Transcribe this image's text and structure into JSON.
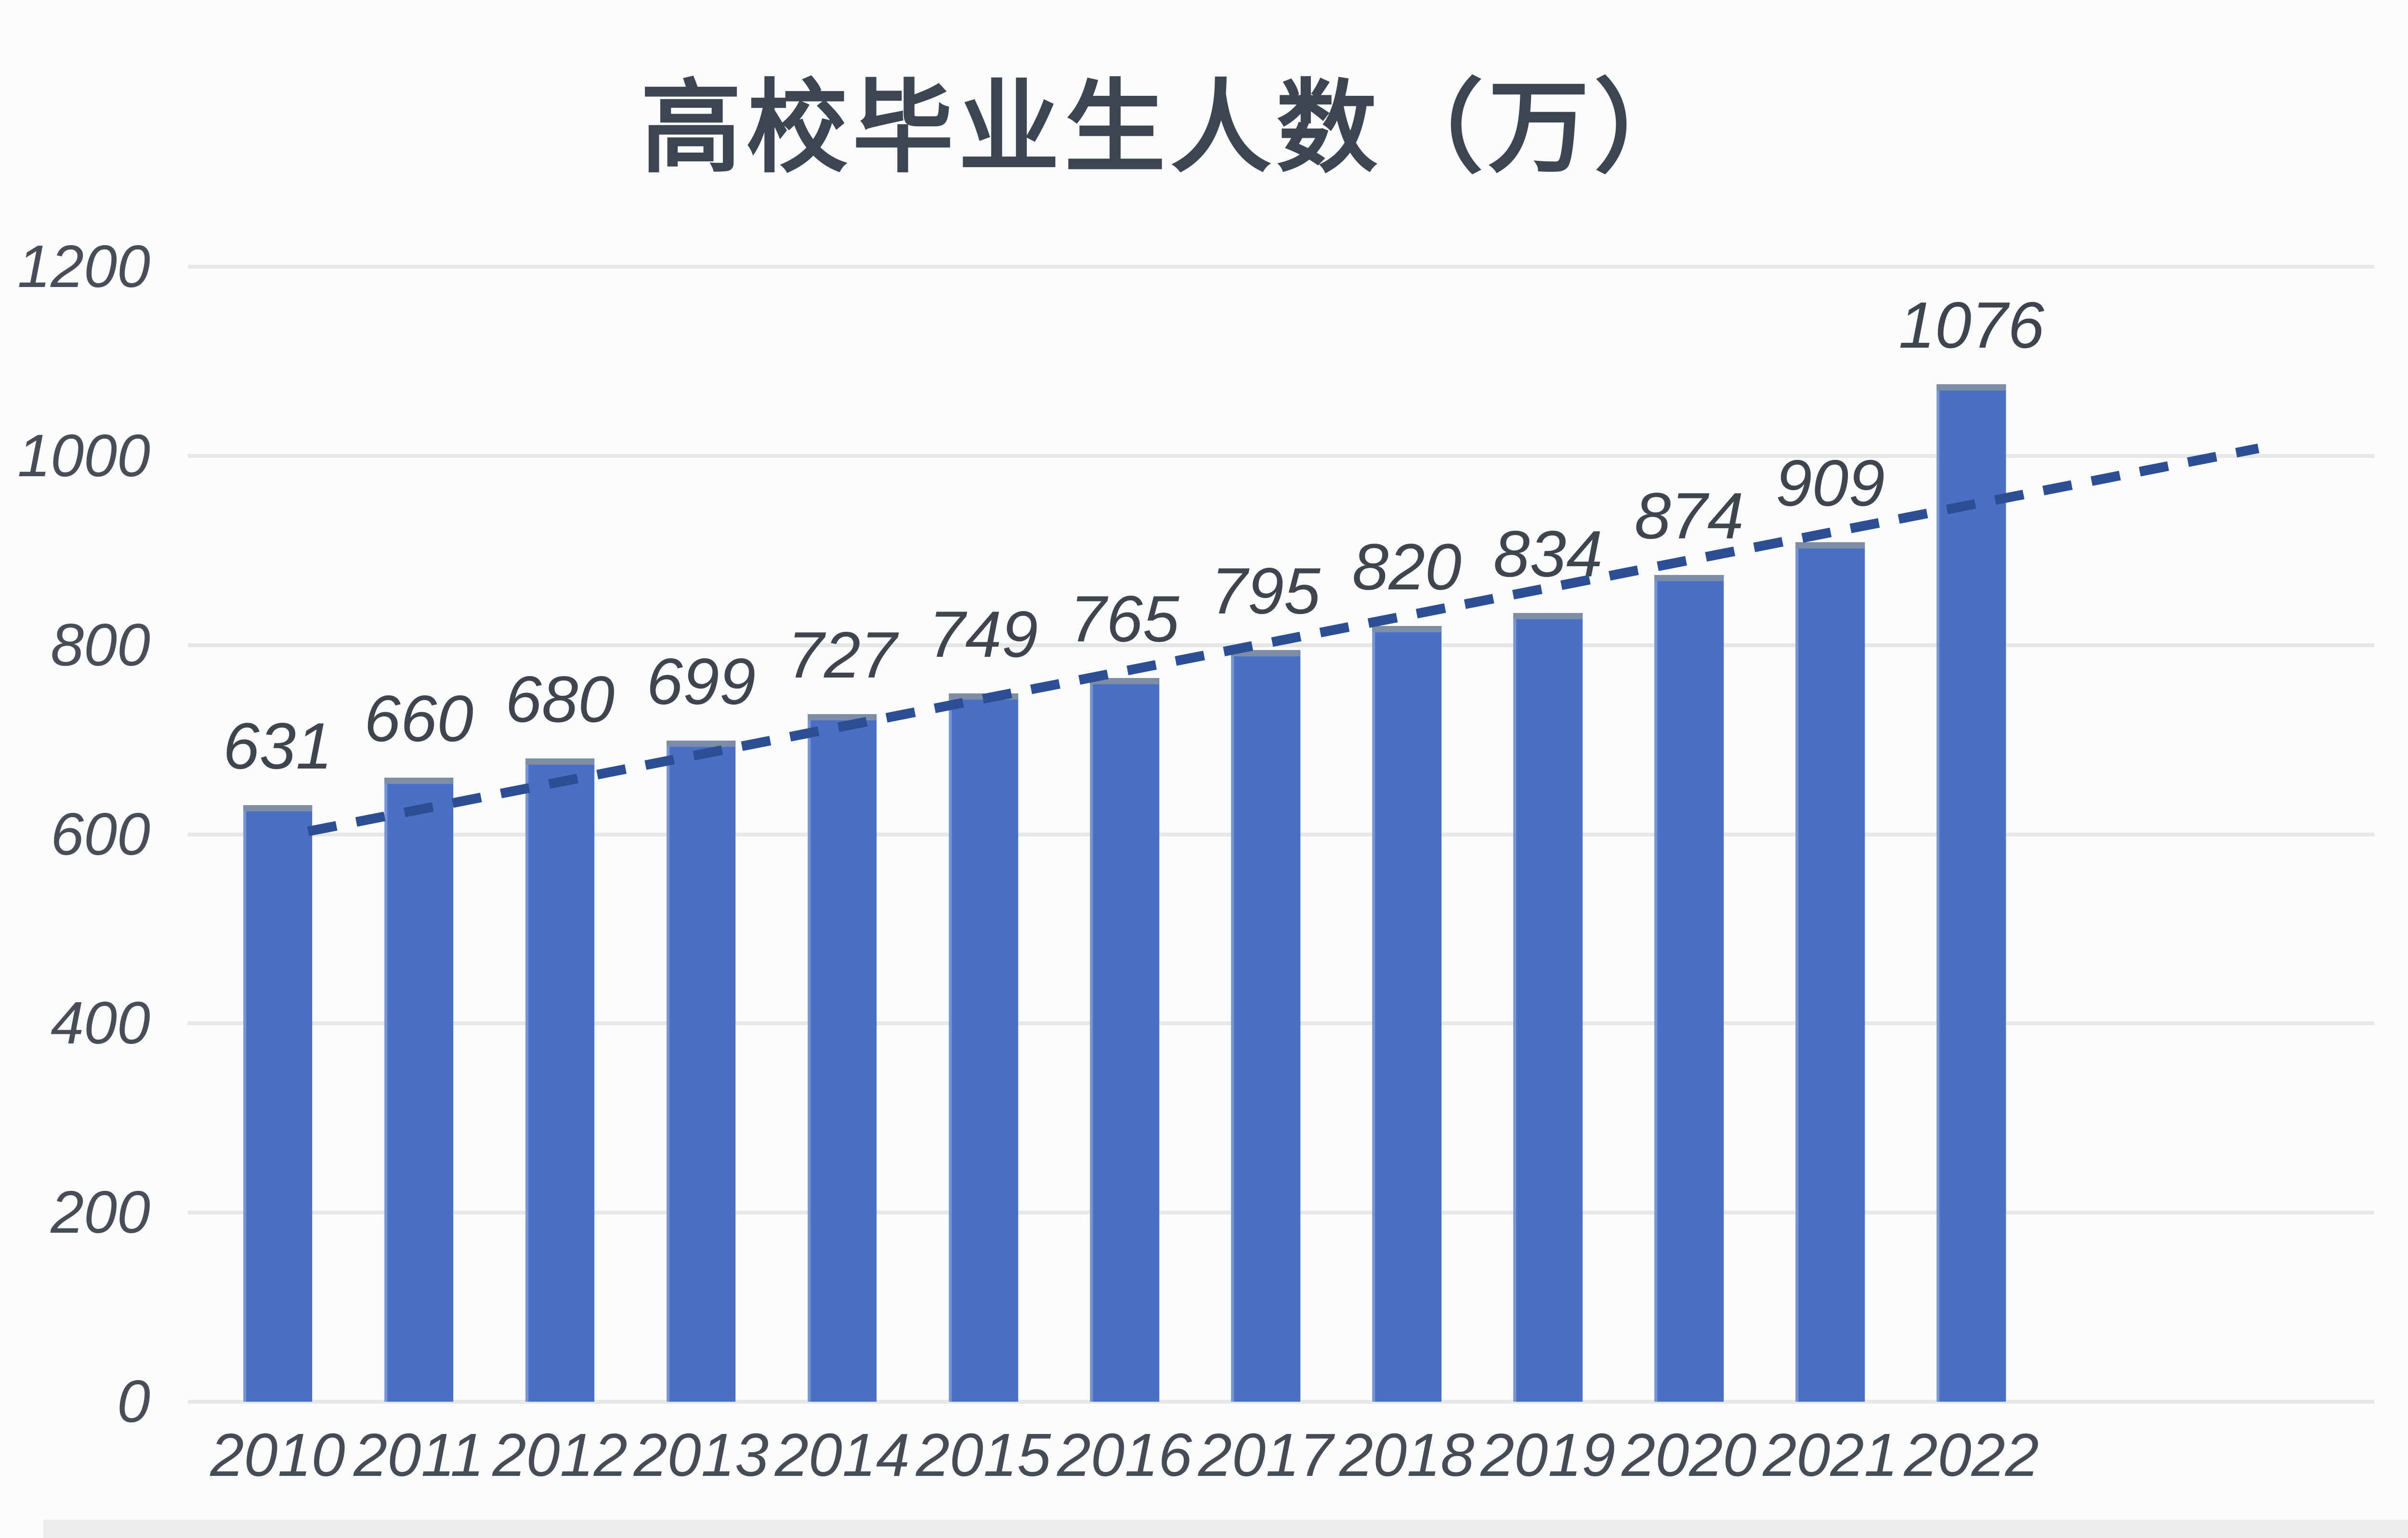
{
  "chart_data": {
    "type": "bar",
    "title": "高校毕业生人数（万）",
    "categories": [
      "2010",
      "2011",
      "2012",
      "2013",
      "2014",
      "2015",
      "2016",
      "2017",
      "2018",
      "2019",
      "2020",
      "2021",
      "2022"
    ],
    "values": [
      631,
      660,
      680,
      699,
      727,
      749,
      765,
      795,
      820,
      834,
      874,
      909,
      1076
    ],
    "xlabel": "",
    "ylabel": "",
    "ylim": [
      0,
      1200
    ],
    "yticks": [
      0,
      200,
      400,
      600,
      800,
      1000,
      1200
    ],
    "grid": "horizontal",
    "legend": "none",
    "data_labels": true,
    "trendline": {
      "style": "dashed",
      "color": "#2B4E94",
      "start": {
        "x_frac": 0.055,
        "value": 603
      },
      "end": {
        "x_frac": 0.947,
        "value": 1008
      }
    },
    "style": {
      "bar_color": "#4A70C4",
      "bar_cap_color": "#7E8DA6",
      "gridline_color": "#E6E8E7",
      "title_color": "#3C4550",
      "tick_label_color": "#474E58",
      "value_label_color": "#3E454E",
      "background_color": "#FBFCFE",
      "footer_strip_color": "#EBEDEC"
    }
  }
}
